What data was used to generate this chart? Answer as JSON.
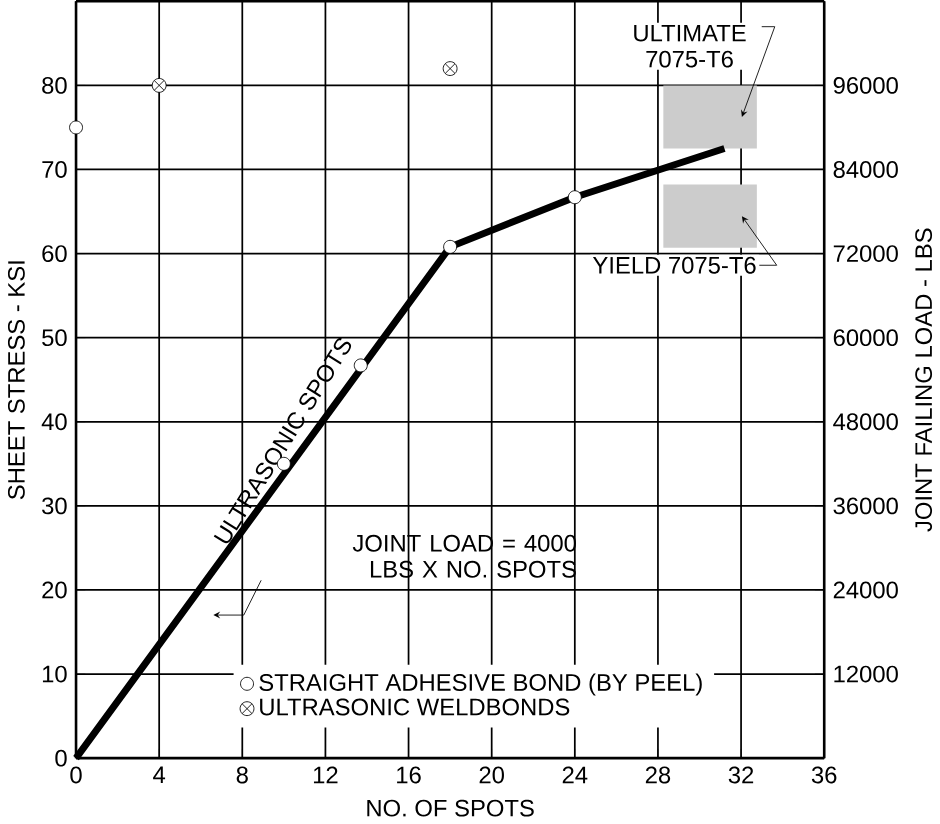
{
  "chart_data": {
    "type": "scatter",
    "xlabel": "NO. OF SPOTS",
    "ylabel": "SHEET STRESS - KSI",
    "y2label": "JOINT FAILING LOAD - LBS",
    "xlim": [
      0,
      36
    ],
    "xticks": [
      0,
      4,
      8,
      12,
      16,
      20,
      24,
      28,
      32,
      36
    ],
    "ylim": [
      0,
      90
    ],
    "yticks": [
      0,
      10,
      20,
      30,
      40,
      50,
      60,
      70,
      80
    ],
    "y2lim": [
      0,
      108000
    ],
    "y2ticks": [
      12000,
      24000,
      36000,
      48000,
      60000,
      72000,
      84000,
      96000
    ],
    "grid": true,
    "legend": "bottom",
    "series": [
      {
        "name": "ULTRASONIC SPOTS",
        "type": "line",
        "color": "#000000",
        "marker": "none",
        "line_style": "solid",
        "x": [
          0,
          18,
          24,
          31.2
        ],
        "values": [
          0,
          60.8,
          66.7,
          72.5
        ]
      },
      {
        "name": "STRAIGHT ADHESIVE BOND (BY PEEL)",
        "color": "#000000",
        "marker": "circle",
        "x": [
          0,
          10,
          13.7,
          18,
          24
        ],
        "values": [
          75,
          35,
          46.7,
          60.8,
          66.7
        ]
      },
      {
        "name": "ULTRASONIC WELDBONDS",
        "color": "#000000",
        "marker": "cross",
        "x": [
          4,
          18
        ],
        "values": [
          80,
          82
        ]
      }
    ],
    "bands": [
      {
        "axis": "y",
        "from": 72.5,
        "to": 80,
        "label": "ULTIMATE 7075-T6",
        "color": "#cccccc"
      },
      {
        "axis": "y",
        "from": 60.7,
        "to": 68.2,
        "label": "YIELD 7075-T6",
        "color": "#cccccc"
      }
    ],
    "annotations": [
      "JOINT LOAD = 4000 LBS X NO. SPOTS"
    ]
  }
}
